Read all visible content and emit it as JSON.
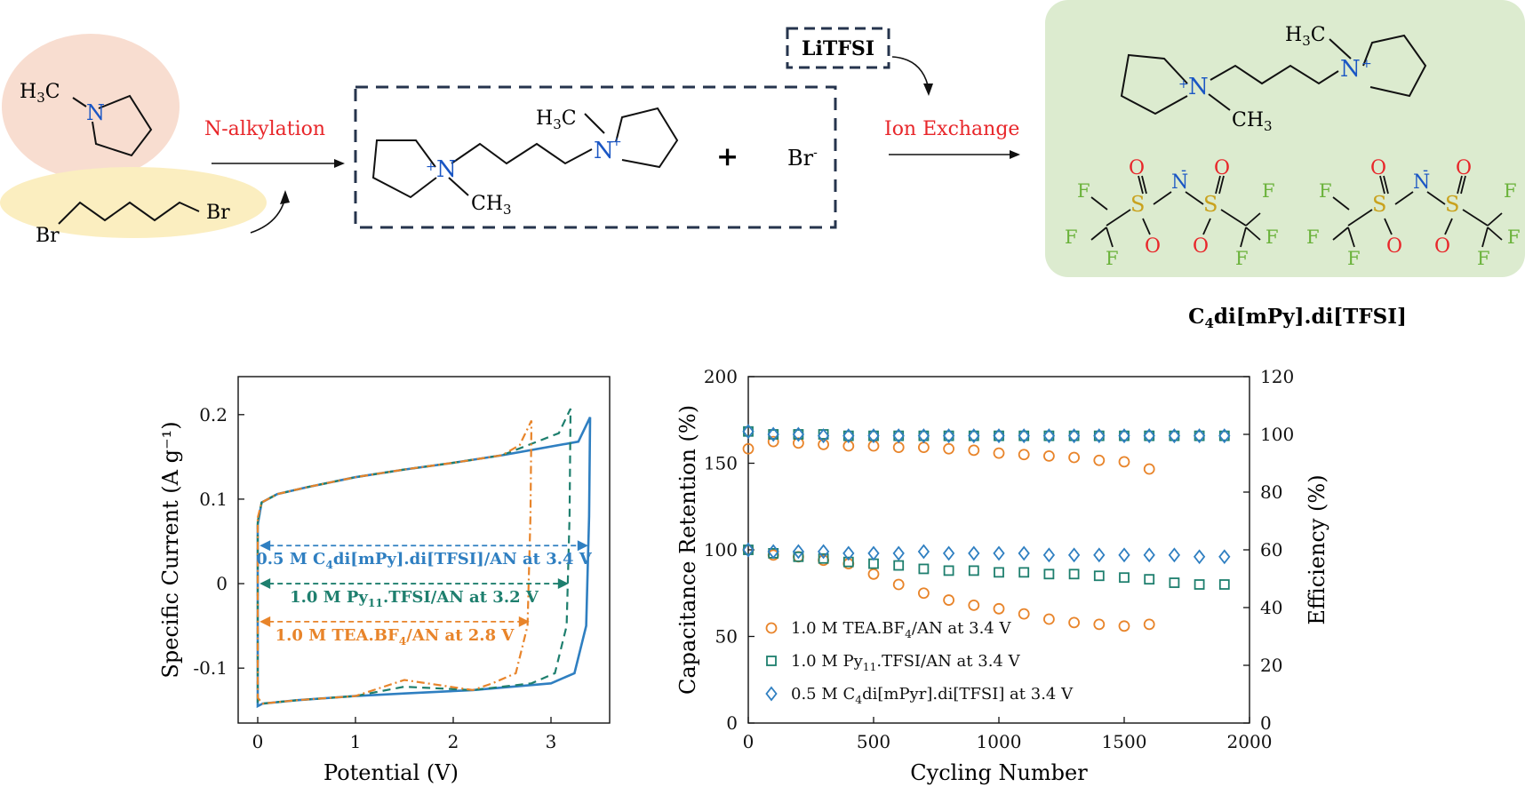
{
  "scheme": {
    "reactant_amine": {
      "label": "H3C",
      "n_atom": "N"
    },
    "reactant_dibromide": {
      "left": "Br",
      "right": "Br"
    },
    "step1_label": "N-alkylation",
    "intermediate": {
      "h3c": "H3C",
      "ch3": "CH3",
      "n1": "N",
      "n2": "N",
      "charge": "+",
      "plus": "+",
      "counter_ion": "Br"
    },
    "reagent": "LiTFSI",
    "step2_label": "Ion Exchange",
    "product": {
      "h3c": "H3C",
      "ch3": "CH3",
      "n1": "N",
      "n2": "N",
      "tfsi": {
        "S": "S",
        "O": "O",
        "N": "N",
        "F": "F",
        "minus": "-"
      }
    },
    "product_name": "C4di[mPy].di[TFSI]",
    "colors": {
      "amine_blob": "#f8ddd0",
      "dibromide_blob": "#fbeec0",
      "product_box": "#dcebcf",
      "n_blue": "#1a56c4",
      "red_label": "#e8262a",
      "s_gold": "#c9a21e",
      "o_red": "#e8262a",
      "f_green": "#6ab23a"
    }
  },
  "chart_data": [
    {
      "type": "line",
      "xlabel": "Potential (V)",
      "ylabel": "Specific Current (A g⁻¹)",
      "xlim": [
        -0.2,
        3.6
      ],
      "ylim": [
        -0.165,
        0.245
      ],
      "xticks": [
        "0",
        "1",
        "2",
        "3"
      ],
      "yticks": [
        "-0.1",
        "0",
        "0.1",
        "0.2"
      ],
      "series": [
        {
          "name": "0.5 M C4di[mPy].di[TFSI]/AN at 3.4 V",
          "color": "#2f7fc1",
          "window_v": 3.4,
          "upper_end": 0.197,
          "lower_end": -0.145
        },
        {
          "name": "1.0 M Py11.TFSI/AN at 3.2 V",
          "color": "#1e7f6e",
          "window_v": 3.2,
          "upper_end": 0.207,
          "lower_end": -0.14
        },
        {
          "name": "1.0 M TEA.BF4/AN at 2.8 V",
          "color": "#e8842a",
          "window_v": 2.8,
          "upper_end": 0.193,
          "lower_end": -0.135
        }
      ]
    },
    {
      "type": "scatter",
      "xlabel": "Cycling Number",
      "ylabel": "Capacitance Retention (%)",
      "y2label": "Efficiency (%)",
      "xlim": [
        0,
        2000
      ],
      "ylim": [
        0,
        200
      ],
      "y2lim": [
        0,
        120
      ],
      "xticks": [
        "0",
        "500",
        "1000",
        "1500",
        "2000"
      ],
      "yticks": [
        "0",
        "50",
        "100",
        "150",
        "200"
      ],
      "y2ticks": [
        "0",
        "20",
        "40",
        "60",
        "80",
        "100",
        "120"
      ],
      "legend_position": "bottom-left",
      "series": [
        {
          "name": "1.0 M TEA.BF4/AN at 3.4 V",
          "color": "#e8842a",
          "marker": "circle",
          "x": [
            0,
            100,
            200,
            300,
            400,
            500,
            600,
            700,
            800,
            900,
            1000,
            1100,
            1200,
            1300,
            1400,
            1500,
            1600
          ],
          "retention": [
            100,
            97,
            96,
            94,
            92,
            86,
            80,
            75,
            71,
            68,
            66,
            63,
            60,
            58,
            57,
            56,
            57
          ],
          "efficiency": [
            95,
            97.5,
            97,
            96.5,
            96,
            96,
            95.5,
            95.5,
            95,
            94.5,
            93.5,
            93,
            92.5,
            92,
            91,
            90.5,
            88
          ]
        },
        {
          "name": "1.0 M Py11.TFSI/AN at 3.4 V",
          "color": "#1e7f6e",
          "marker": "square",
          "x": [
            0,
            100,
            200,
            300,
            400,
            500,
            600,
            700,
            800,
            900,
            1000,
            1100,
            1200,
            1300,
            1400,
            1500,
            1600,
            1700,
            1800,
            1900
          ],
          "retention": [
            100,
            98,
            96,
            95,
            93,
            92,
            91,
            89,
            88,
            88,
            87,
            87,
            86,
            86,
            85,
            84,
            83,
            81,
            80,
            80
          ],
          "efficiency": [
            101,
            100,
            100,
            100,
            99.5,
            99.5,
            99.5,
            99.5,
            99.5,
            99.5,
            99.5,
            99.5,
            99.5,
            99.5,
            99.5,
            99.5,
            99.5,
            99.5,
            99.5,
            99.5
          ]
        },
        {
          "name": "0.5 M C4di[mPyr].di[TFSI] at 3.4 V",
          "color": "#2f7fc1",
          "marker": "diamond",
          "x": [
            0,
            100,
            200,
            300,
            400,
            500,
            600,
            700,
            800,
            900,
            1000,
            1100,
            1200,
            1300,
            1400,
            1500,
            1600,
            1700,
            1800,
            1900
          ],
          "retention": [
            100,
            99,
            99,
            99,
            98,
            98,
            98,
            99,
            98,
            98,
            98,
            98,
            97,
            97,
            97,
            97,
            97,
            97,
            96,
            96
          ],
          "efficiency": [
            101,
            100,
            100,
            99.5,
            99.5,
            99.5,
            99.5,
            99.5,
            99.5,
            99.5,
            99.5,
            99.5,
            99.5,
            99.5,
            99.5,
            99.5,
            99.5,
            99.5,
            99.5,
            99.5
          ]
        }
      ]
    }
  ]
}
